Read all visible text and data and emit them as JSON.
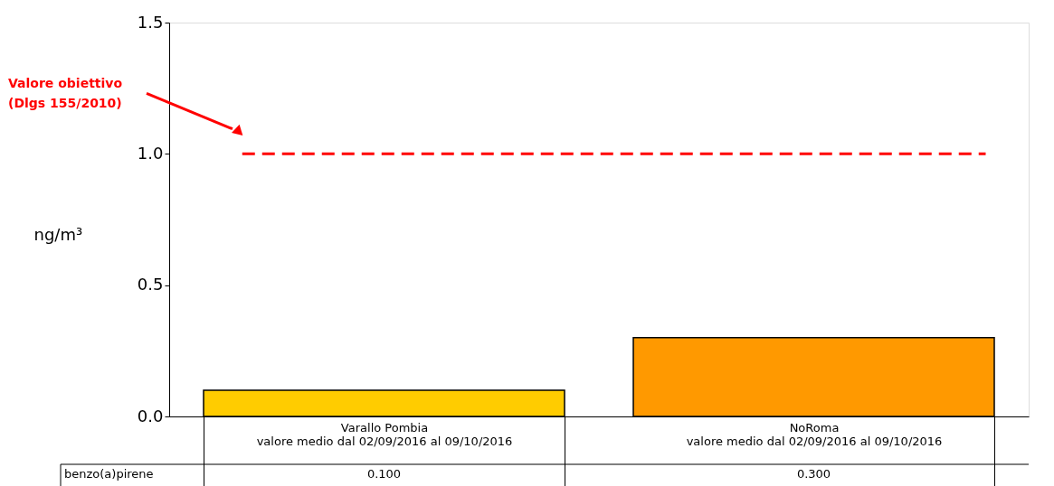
{
  "chart_data": {
    "type": "bar",
    "ylabel": "ng/m³",
    "categories": [
      "Varallo Pombia\nvalore medio dal 02/09/2016 al 09/10/2016",
      "NoRoma\nvalore medio dal 02/09/2016 al 09/10/2016"
    ],
    "series": [
      {
        "name": "benzo(a)pirene",
        "colors": [
          "#ffcc00",
          "#ff9900"
        ],
        "values": [
          0.1,
          0.3
        ],
        "value_labels": [
          "0.100",
          "0.300"
        ]
      }
    ],
    "ylim": [
      0,
      1.5
    ],
    "yticks": [
      {
        "value": 0,
        "label": "0.0"
      },
      {
        "value": 0.5,
        "label": "0.5"
      },
      {
        "value": 1,
        "label": "1.0"
      },
      {
        "value": 1.5,
        "label": "1.5"
      }
    ],
    "ref_lines": [
      {
        "axis": "y",
        "value": 1.0,
        "label": "Valore obiettivo\n(Dlgs 155/2010)",
        "color": "#ff0000",
        "line_style": "dashed"
      }
    ],
    "grid": false,
    "legend": "bottom left"
  }
}
